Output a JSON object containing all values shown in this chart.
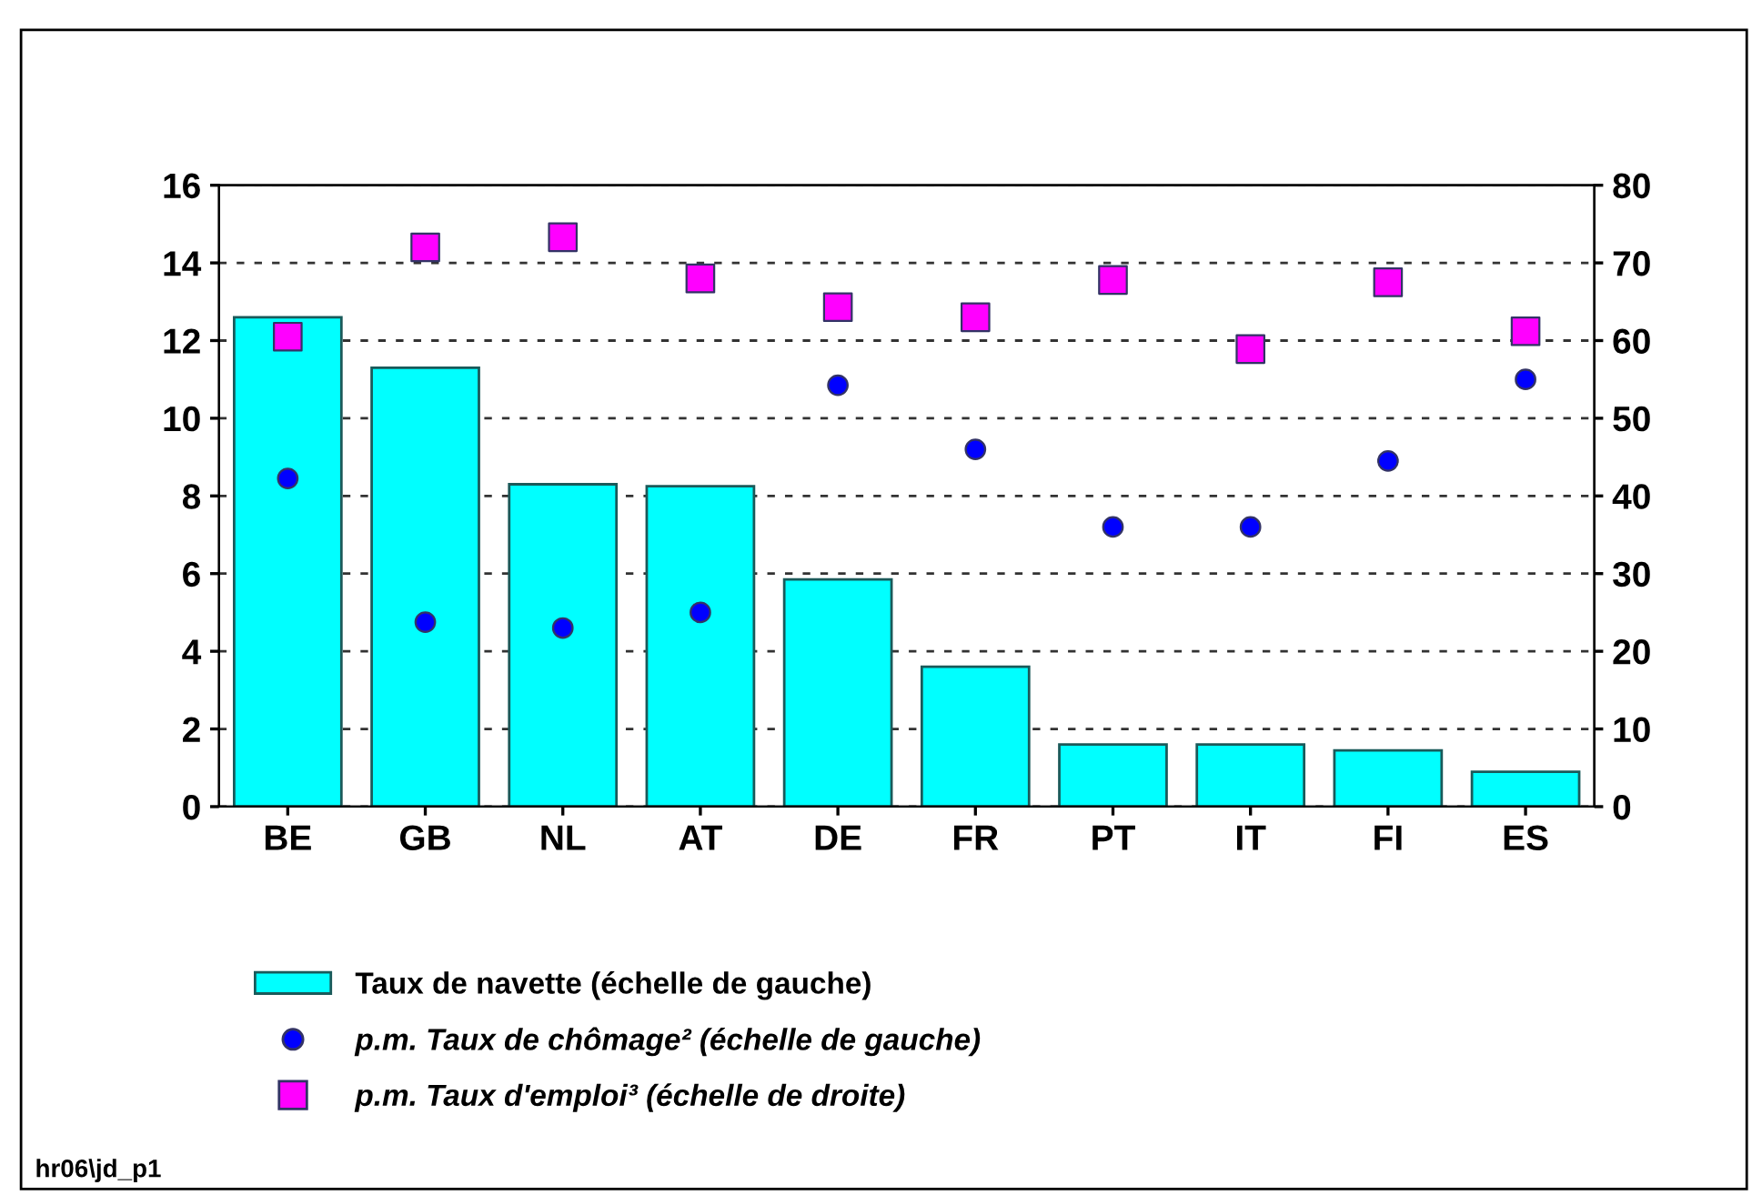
{
  "chart_data": {
    "type": "bar",
    "categories": [
      "BE",
      "GB",
      "NL",
      "AT",
      "DE",
      "FR",
      "PT",
      "IT",
      "FI",
      "ES"
    ],
    "series": [
      {
        "name": "Taux de navette (échelle de gauche)",
        "color": "#00ffff",
        "values": [
          12.6,
          11.3,
          8.3,
          8.25,
          5.85,
          3.6,
          1.6,
          1.6,
          1.45,
          0.9
        ]
      },
      {
        "name": "p.m. Taux de chômage² (échelle de gauche)",
        "type": "scatter",
        "marker": "circle",
        "color": "#0000ff",
        "values": [
          8.45,
          4.75,
          4.6,
          5.0,
          10.85,
          9.2,
          7.2,
          7.2,
          8.9,
          11.0
        ]
      },
      {
        "name": "p.m. Taux d'emploi³ (échelle de droite)",
        "type": "scatter",
        "marker": "square",
        "axis": "y2",
        "color": "#ff00ff",
        "values": [
          60.5,
          72,
          73.3,
          68,
          64.3,
          63,
          67.8,
          58.9,
          67.5,
          61.2
        ]
      }
    ],
    "ylim": [
      0,
      16
    ],
    "yticks": [
      0,
      2,
      4,
      6,
      8,
      10,
      12,
      14,
      16
    ],
    "y2lim": [
      0,
      80
    ],
    "y2ticks": [
      0,
      10,
      20,
      30,
      40,
      50,
      60,
      70,
      80
    ],
    "grid": "y",
    "legend": "bottom",
    "annotations": [
      "hr06\\jd_p1"
    ]
  }
}
